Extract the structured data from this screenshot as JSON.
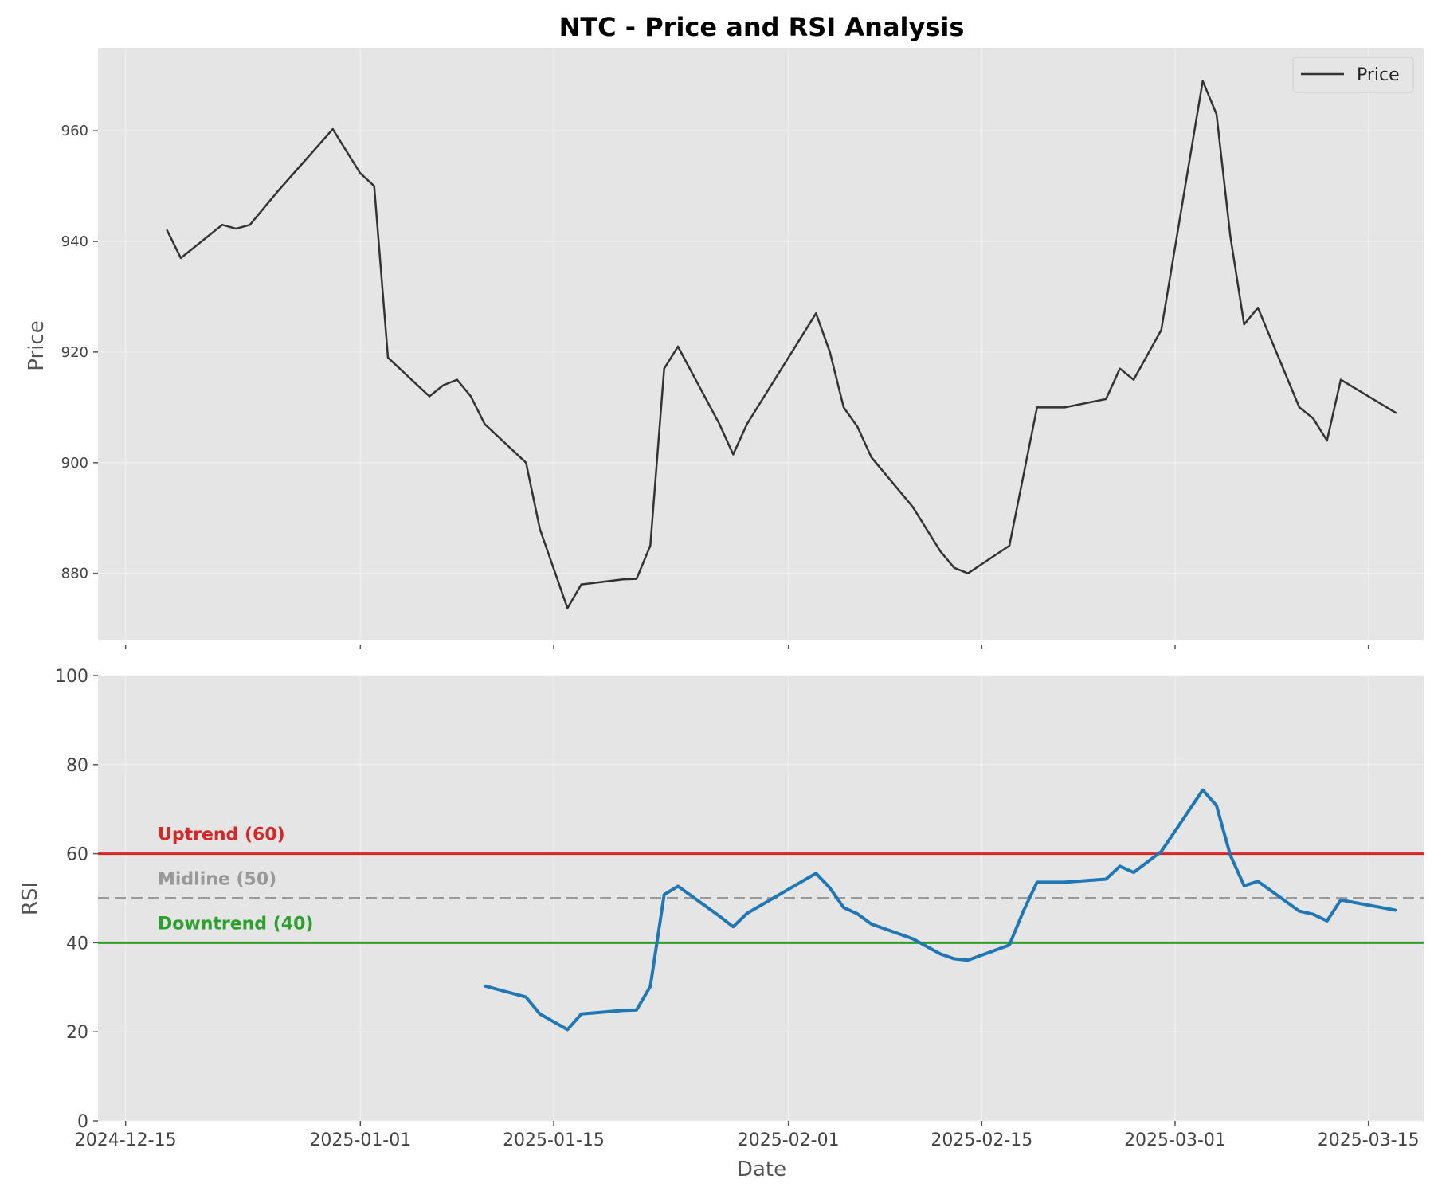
{
  "chart_data": [
    {
      "type": "line",
      "title": "NTC - Price and RSI Analysis",
      "xlabel": "",
      "ylabel": "Price",
      "ylim": [
        868,
        975
      ],
      "yticks": [
        880,
        900,
        920,
        940,
        960
      ],
      "grid": true,
      "legend": {
        "placement": "top-right",
        "entries": [
          "Price"
        ]
      },
      "series": [
        {
          "name": "Price",
          "color": "#333333",
          "points": [
            [
              "2024-12-18",
              942
            ],
            [
              "2024-12-19",
              937
            ],
            [
              "2024-12-22",
              943
            ],
            [
              "2024-12-23",
              942.3
            ],
            [
              "2024-12-24",
              943
            ],
            [
              "2024-12-26",
              949
            ],
            [
              "2024-12-30",
              960.3
            ],
            [
              "2025-01-01",
              952.3
            ],
            [
              "2025-01-02",
              950
            ],
            [
              "2025-01-03",
              919
            ],
            [
              "2025-01-06",
              912
            ],
            [
              "2025-01-07",
              914
            ],
            [
              "2025-01-08",
              915
            ],
            [
              "2025-01-09",
              912
            ],
            [
              "2025-01-10",
              907
            ],
            [
              "2025-01-13",
              900
            ],
            [
              "2025-01-14",
              888
            ],
            [
              "2025-01-16",
              873.7
            ],
            [
              "2025-01-17",
              878
            ],
            [
              "2025-01-20",
              878.9
            ],
            [
              "2025-01-21",
              879
            ],
            [
              "2025-01-22",
              885
            ],
            [
              "2025-01-23",
              917
            ],
            [
              "2025-01-24",
              921
            ],
            [
              "2025-01-27",
              907
            ],
            [
              "2025-01-28",
              901.5
            ],
            [
              "2025-01-29",
              907
            ],
            [
              "2025-02-03",
              927
            ],
            [
              "2025-02-04",
              920
            ],
            [
              "2025-02-05",
              910
            ],
            [
              "2025-02-06",
              906.5
            ],
            [
              "2025-02-07",
              901
            ],
            [
              "2025-02-10",
              892
            ],
            [
              "2025-02-12",
              884
            ],
            [
              "2025-02-13",
              881
            ],
            [
              "2025-02-14",
              880
            ],
            [
              "2025-02-17",
              885
            ],
            [
              "2025-02-19",
              910
            ],
            [
              "2025-02-21",
              910
            ],
            [
              "2025-02-24",
              911.5
            ],
            [
              "2025-02-25",
              917
            ],
            [
              "2025-02-26",
              915
            ],
            [
              "2025-02-28",
              924
            ],
            [
              "2025-03-03",
              969
            ],
            [
              "2025-03-04",
              963
            ],
            [
              "2025-03-05",
              941
            ],
            [
              "2025-03-06",
              925
            ],
            [
              "2025-03-07",
              928
            ],
            [
              "2025-03-10",
              910
            ],
            [
              "2025-03-11",
              908
            ],
            [
              "2025-03-12",
              904
            ],
            [
              "2025-03-13",
              915
            ],
            [
              "2025-03-17",
              909
            ]
          ]
        }
      ]
    },
    {
      "type": "line",
      "title": "",
      "xlabel": "Date",
      "ylabel": "RSI",
      "ylim": [
        0,
        100
      ],
      "yticks": [
        0,
        20,
        40,
        60,
        80,
        100
      ],
      "xlim": [
        "2024-12-13",
        "2025-03-19"
      ],
      "xticks": [
        "2024-12-15",
        "2025-01-01",
        "2025-01-15",
        "2025-02-01",
        "2025-02-15",
        "2025-03-01",
        "2025-03-15"
      ],
      "grid": true,
      "series": [
        {
          "name": "RSI",
          "color": "#1f77b4",
          "points": [
            [
              "2025-01-10",
              30.3
            ],
            [
              "2025-01-13",
              27.8
            ],
            [
              "2025-01-14",
              24
            ],
            [
              "2025-01-16",
              20.5
            ],
            [
              "2025-01-17",
              24
            ],
            [
              "2025-01-20",
              24.8
            ],
            [
              "2025-01-21",
              24.9
            ],
            [
              "2025-01-22",
              30.2
            ],
            [
              "2025-01-23",
              50.8
            ],
            [
              "2025-01-24",
              52.7
            ],
            [
              "2025-01-27",
              46
            ],
            [
              "2025-01-28",
              43.6
            ],
            [
              "2025-01-29",
              46.6
            ],
            [
              "2025-02-03",
              55.6
            ],
            [
              "2025-02-04",
              52.3
            ],
            [
              "2025-02-05",
              47.9
            ],
            [
              "2025-02-06",
              46.5
            ],
            [
              "2025-02-07",
              44.2
            ],
            [
              "2025-02-10",
              40.9
            ],
            [
              "2025-02-12",
              37.5
            ],
            [
              "2025-02-13",
              36.4
            ],
            [
              "2025-02-14",
              36.1
            ],
            [
              "2025-02-17",
              39.5
            ],
            [
              "2025-02-18",
              47
            ],
            [
              "2025-02-19",
              53.6
            ],
            [
              "2025-02-21",
              53.6
            ],
            [
              "2025-02-24",
              54.3
            ],
            [
              "2025-02-25",
              57.2
            ],
            [
              "2025-02-26",
              55.8
            ],
            [
              "2025-02-28",
              60.5
            ],
            [
              "2025-03-03",
              74.3
            ],
            [
              "2025-03-04",
              70.8
            ],
            [
              "2025-03-05",
              59.7
            ],
            [
              "2025-03-06",
              52.8
            ],
            [
              "2025-03-07",
              53.8
            ],
            [
              "2025-03-10",
              47.1
            ],
            [
              "2025-03-11",
              46.4
            ],
            [
              "2025-03-12",
              44.9
            ],
            [
              "2025-03-13",
              49.6
            ],
            [
              "2025-03-17",
              47.3
            ]
          ]
        }
      ],
      "reference_lines": [
        {
          "label": "Uptrend (60)",
          "value": 60,
          "color": "#d62728",
          "style": "solid"
        },
        {
          "label": "Midline (50)",
          "value": 50,
          "color": "#999999",
          "style": "dashed"
        },
        {
          "label": "Downtrend (40)",
          "value": 40,
          "color": "#2ca02c",
          "style": "solid"
        }
      ]
    }
  ],
  "colors": {
    "background": "#e5e5e5",
    "grid": "#f2f2f2",
    "price": "#333333",
    "rsi": "#1f77b4"
  }
}
